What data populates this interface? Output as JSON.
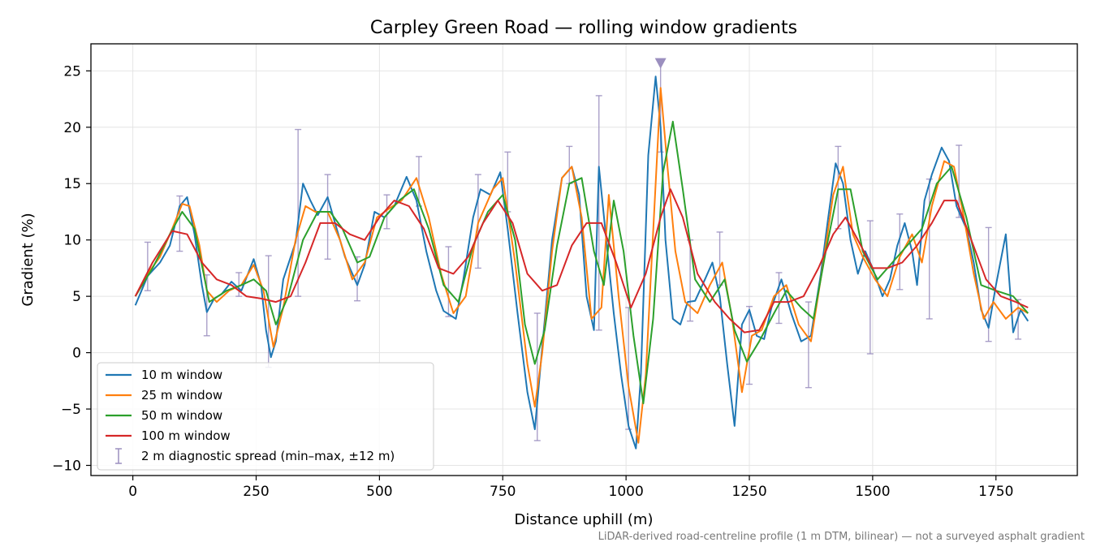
{
  "chart_data": {
    "type": "line",
    "title": "Carpley Green Road — rolling window gradients",
    "xlabel": "Distance uphill (m)",
    "ylabel": "Gradient (%)",
    "footnote": "LiDAR-derived road-centreline profile (1 m DTM, bilinear) — not a surveyed asphalt gradient",
    "xlim": [
      -85,
      1915
    ],
    "ylim": [
      -10.9,
      27.4
    ],
    "xticks": [
      0,
      250,
      500,
      750,
      1000,
      1250,
      1500,
      1750
    ],
    "yticks": [
      -10,
      -5,
      0,
      5,
      10,
      15,
      20,
      25
    ],
    "xtick_labels": [
      "0",
      "250",
      "500",
      "750",
      "1000",
      "1250",
      "1500",
      "1750"
    ],
    "ytick_labels": [
      "−10",
      "−5",
      "0",
      "5",
      "10",
      "15",
      "20",
      "25"
    ],
    "grid": true,
    "legend_position": "lower-left",
    "colors": {
      "10 m window": "#1f77b4",
      "25 m window": "#ff7f0e",
      "50 m window": "#2ca02c",
      "100 m window": "#d62728",
      "2 m diagnostic spread": "#9b8fbf"
    },
    "series": [
      {
        "name": "10 m window",
        "x": [
          5,
          30,
          55,
          75,
          95,
          110,
          125,
          140,
          150,
          165,
          180,
          200,
          220,
          245,
          260,
          270,
          280,
          290,
          305,
          330,
          345,
          360,
          375,
          395,
          410,
          430,
          455,
          470,
          490,
          510,
          530,
          555,
          575,
          595,
          615,
          630,
          655,
          670,
          690,
          705,
          725,
          745,
          760,
          780,
          800,
          815,
          830,
          850,
          870,
          890,
          905,
          920,
          935,
          945,
          960,
          975,
          990,
          1005,
          1020,
          1030,
          1045,
          1060,
          1070,
          1080,
          1095,
          1110,
          1125,
          1140,
          1160,
          1175,
          1190,
          1205,
          1220,
          1235,
          1250,
          1265,
          1280,
          1295,
          1315,
          1335,
          1355,
          1375,
          1395,
          1410,
          1425,
          1440,
          1455,
          1470,
          1485,
          1500,
          1520,
          1535,
          1550,
          1565,
          1580,
          1590,
          1605,
          1620,
          1640,
          1655,
          1670,
          1690,
          1705,
          1720,
          1735,
          1750,
          1770,
          1785,
          1800,
          1815
        ],
        "y": [
          4.2,
          6.8,
          8.0,
          9.5,
          13.0,
          13.8,
          10.5,
          6.0,
          3.6,
          4.8,
          5.2,
          6.3,
          5.5,
          8.3,
          6.0,
          2.0,
          -0.4,
          1.0,
          6.5,
          9.8,
          15.0,
          13.5,
          12.2,
          13.8,
          11.5,
          8.5,
          6.0,
          7.8,
          12.5,
          12.0,
          13.0,
          15.6,
          13.5,
          9.0,
          5.5,
          3.7,
          3.0,
          6.5,
          12.0,
          14.5,
          14.0,
          16.0,
          11.0,
          3.5,
          -3.5,
          -6.8,
          0.5,
          10.0,
          15.5,
          16.5,
          14.0,
          5.0,
          2.0,
          16.5,
          10.0,
          3.5,
          -2.0,
          -6.5,
          -8.5,
          -2.0,
          17.5,
          24.5,
          20.0,
          10.0,
          3.0,
          2.5,
          4.5,
          4.6,
          6.5,
          8.0,
          5.0,
          -1.0,
          -6.5,
          2.5,
          3.8,
          1.5,
          1.2,
          4.0,
          6.5,
          3.5,
          1.0,
          1.5,
          7.0,
          12.0,
          16.8,
          15.0,
          10.0,
          7.0,
          9.0,
          7.5,
          5.0,
          6.5,
          9.5,
          11.5,
          9.0,
          6.0,
          13.5,
          15.8,
          18.2,
          17.0,
          13.0,
          11.0,
          8.0,
          3.8,
          2.2,
          6.0,
          10.5,
          1.8,
          3.8,
          2.8
        ]
      },
      {
        "name": "25 m window",
        "x": [
          5,
          30,
          55,
          80,
          100,
          115,
          135,
          150,
          170,
          195,
          220,
          245,
          265,
          285,
          305,
          330,
          350,
          370,
          395,
          420,
          445,
          470,
          495,
          520,
          545,
          575,
          600,
          625,
          650,
          675,
          700,
          730,
          750,
          775,
          800,
          815,
          830,
          850,
          870,
          890,
          910,
          930,
          950,
          965,
          985,
          1005,
          1025,
          1040,
          1060,
          1070,
          1085,
          1100,
          1120,
          1145,
          1170,
          1195,
          1215,
          1235,
          1255,
          1275,
          1300,
          1325,
          1350,
          1375,
          1400,
          1420,
          1440,
          1460,
          1480,
          1505,
          1530,
          1555,
          1580,
          1600,
          1620,
          1645,
          1665,
          1685,
          1705,
          1725,
          1745,
          1770,
          1795,
          1815
        ],
        "y": [
          5.0,
          7.0,
          8.5,
          11.0,
          13.2,
          13.0,
          9.5,
          5.5,
          4.5,
          5.5,
          6.0,
          7.8,
          5.5,
          0.5,
          4.0,
          10.0,
          13.0,
          12.5,
          12.5,
          10.0,
          6.5,
          8.0,
          12.0,
          12.8,
          13.5,
          15.5,
          12.0,
          7.0,
          3.5,
          5.0,
          11.5,
          14.5,
          15.5,
          8.0,
          -1.0,
          -4.8,
          0.0,
          9.0,
          15.5,
          16.5,
          12.0,
          3.0,
          4.0,
          14.0,
          5.0,
          -3.0,
          -8.0,
          -2.0,
          15.0,
          23.5,
          16.0,
          9.0,
          4.5,
          3.5,
          6.0,
          8.0,
          3.0,
          -3.5,
          1.5,
          2.0,
          5.0,
          6.0,
          2.5,
          1.0,
          8.0,
          14.0,
          16.5,
          10.5,
          8.5,
          6.5,
          5.0,
          8.5,
          10.5,
          8.0,
          13.0,
          17.0,
          16.5,
          12.0,
          7.0,
          3.0,
          4.5,
          3.0,
          4.0,
          3.5
        ]
      },
      {
        "name": "50 m window",
        "x": [
          5,
          40,
          75,
          100,
          125,
          155,
          190,
          220,
          245,
          270,
          290,
          315,
          345,
          375,
          400,
          425,
          455,
          480,
          510,
          540,
          570,
          600,
          630,
          660,
          690,
          720,
          750,
          775,
          795,
          815,
          835,
          860,
          885,
          910,
          935,
          955,
          975,
          995,
          1015,
          1035,
          1055,
          1075,
          1095,
          1115,
          1140,
          1170,
          1200,
          1220,
          1245,
          1270,
          1300,
          1325,
          1355,
          1380,
          1405,
          1430,
          1455,
          1480,
          1510,
          1540,
          1570,
          1600,
          1630,
          1660,
          1690,
          1720,
          1750,
          1785,
          1815
        ],
        "y": [
          5.0,
          7.5,
          10.5,
          12.5,
          11.0,
          4.5,
          5.5,
          6.0,
          6.5,
          5.5,
          2.5,
          5.0,
          10.0,
          12.5,
          12.5,
          11.0,
          8.0,
          8.5,
          12.0,
          13.5,
          14.5,
          11.0,
          6.0,
          4.5,
          9.5,
          12.5,
          14.0,
          10.0,
          2.5,
          -1.0,
          2.0,
          9.5,
          15.0,
          15.5,
          9.0,
          6.0,
          13.5,
          9.0,
          1.5,
          -4.5,
          3.0,
          16.0,
          20.5,
          14.5,
          6.5,
          4.5,
          6.5,
          2.0,
          -0.8,
          1.0,
          3.5,
          5.5,
          4.0,
          3.0,
          9.0,
          14.5,
          14.5,
          9.0,
          6.5,
          8.0,
          9.5,
          11.0,
          15.0,
          16.5,
          12.0,
          6.0,
          5.5,
          5.0,
          3.5
        ]
      },
      {
        "name": "100 m window",
        "x": [
          5,
          40,
          80,
          110,
          140,
          170,
          200,
          230,
          260,
          290,
          320,
          350,
          380,
          410,
          440,
          470,
          500,
          530,
          560,
          590,
          620,
          650,
          680,
          710,
          740,
          770,
          800,
          830,
          860,
          890,
          920,
          950,
          980,
          1010,
          1040,
          1070,
          1090,
          1115,
          1145,
          1180,
          1210,
          1240,
          1270,
          1300,
          1330,
          1360,
          1390,
          1420,
          1445,
          1470,
          1500,
          1530,
          1560,
          1590,
          1620,
          1645,
          1670,
          1700,
          1730,
          1760,
          1790,
          1815
        ],
        "y": [
          5.0,
          8.0,
          10.8,
          10.5,
          8.0,
          6.5,
          6.0,
          5.0,
          4.8,
          4.5,
          5.0,
          8.0,
          11.5,
          11.5,
          10.5,
          10.0,
          12.0,
          13.5,
          13.0,
          11.0,
          7.5,
          7.0,
          8.5,
          11.5,
          13.5,
          11.5,
          7.0,
          5.5,
          6.0,
          9.5,
          11.5,
          11.5,
          8.0,
          4.0,
          7.0,
          12.0,
          14.5,
          12.0,
          7.0,
          4.5,
          3.0,
          1.8,
          2.0,
          4.5,
          4.5,
          5.0,
          7.5,
          10.5,
          12.0,
          10.0,
          7.5,
          7.5,
          8.0,
          9.5,
          11.5,
          13.5,
          13.5,
          10.0,
          6.5,
          5.0,
          4.5,
          4.0
        ]
      }
    ],
    "diagnostic_spread": {
      "name": "2 m diagnostic spread (min–max, ±12 m)",
      "x": [
        30,
        95,
        150,
        215,
        275,
        335,
        395,
        455,
        515,
        580,
        640,
        700,
        760,
        820,
        885,
        945,
        1005,
        1070,
        1130,
        1190,
        1250,
        1310,
        1370,
        1430,
        1495,
        1555,
        1615,
        1675,
        1735,
        1795
      ],
      "low": [
        5.5,
        9.0,
        1.5,
        5.0,
        -1.3,
        5.0,
        8.3,
        4.6,
        11.0,
        13.0,
        3.2,
        7.5,
        12.5,
        -7.8,
        15.0,
        2.0,
        -6.8,
        17.8,
        2.8,
        6.0,
        -2.8,
        2.6,
        -3.1,
        11.0,
        -0.1,
        5.6,
        3.0,
        12.0,
        1.0,
        1.2
      ],
      "high": [
        9.8,
        13.9,
        6.9,
        7.1,
        8.6,
        19.8,
        15.8,
        8.5,
        14.0,
        17.4,
        9.4,
        15.8,
        17.8,
        3.5,
        18.3,
        22.8,
        4.0,
        25.8,
        10.0,
        10.7,
        4.1,
        7.1,
        4.5,
        18.3,
        11.7,
        12.3,
        15.4,
        18.4,
        11.1,
        4.7
      ]
    },
    "peak_marker": {
      "x": 1070,
      "y": 25.7
    }
  }
}
